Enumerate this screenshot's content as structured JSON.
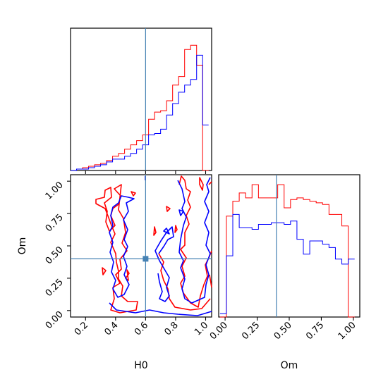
{
  "chart_data": {
    "type": "corner",
    "parameters": [
      "H0",
      "Om"
    ],
    "axis_labels": {
      "x_bottom_left": "H0",
      "y_left": "Om",
      "x_bottom_right": "Om"
    },
    "truth": {
      "H0": 0.6,
      "Om": 0.4
    },
    "truth_color": "#4682b4",
    "series_colors": {
      "red": "#ff0000",
      "blue": "#0000ff"
    },
    "h0_panel": {
      "xlim": [
        0.1,
        1.04
      ],
      "xticks": [
        "0.2",
        "0.4",
        "0.6",
        "0.8",
        "1.0"
      ],
      "xtick_values": [
        0.2,
        0.4,
        0.6,
        0.8,
        1.0
      ]
    },
    "om_panel": {
      "xlim": [
        -0.05,
        1.05
      ],
      "xticks": [
        "0.00",
        "0.25",
        "0.50",
        "0.75",
        "1.00"
      ],
      "xtick_values": [
        0.0,
        0.25,
        0.5,
        0.75,
        1.0
      ]
    },
    "joint_panel": {
      "ylim": [
        -0.05,
        1.05
      ],
      "yticks": [
        "0.00",
        "0.25",
        "0.50",
        "0.75",
        "1.00"
      ],
      "ytick_values": [
        0.0,
        0.25,
        0.5,
        0.75,
        1.0
      ]
    },
    "hist_h0": {
      "bin_edges": [
        0.1,
        0.14,
        0.18,
        0.22,
        0.26,
        0.3,
        0.34,
        0.38,
        0.42,
        0.46,
        0.5,
        0.54,
        0.58,
        0.62,
        0.66,
        0.7,
        0.74,
        0.78,
        0.82,
        0.86,
        0.9,
        0.94,
        0.98,
        1.02
      ],
      "ylim": [
        0,
        1.0
      ],
      "series": [
        {
          "color": "red",
          "values": [
            0.0,
            0.01,
            0.02,
            0.03,
            0.04,
            0.05,
            0.07,
            0.1,
            0.12,
            0.15,
            0.18,
            0.21,
            0.25,
            0.36,
            0.41,
            0.42,
            0.49,
            0.6,
            0.66,
            0.85,
            0.88,
            0.74,
            0.0
          ]
        },
        {
          "color": "blue",
          "values": [
            0.0,
            0.01,
            0.01,
            0.02,
            0.03,
            0.04,
            0.06,
            0.08,
            0.08,
            0.1,
            0.12,
            0.15,
            0.18,
            0.25,
            0.26,
            0.29,
            0.39,
            0.47,
            0.55,
            0.6,
            0.64,
            0.81,
            0.32
          ]
        }
      ]
    },
    "hist_om": {
      "bin_edges": [
        -0.04,
        0.01,
        0.06,
        0.11,
        0.16,
        0.21,
        0.26,
        0.31,
        0.36,
        0.41,
        0.46,
        0.51,
        0.56,
        0.61,
        0.66,
        0.71,
        0.76,
        0.81,
        0.86,
        0.91,
        0.96,
        1.01
      ],
      "ylim": [
        0,
        0.86
      ],
      "series": [
        {
          "color": "red",
          "values": [
            0.0,
            0.61,
            0.7,
            0.75,
            0.72,
            0.8,
            0.72,
            0.72,
            0.72,
            0.8,
            0.66,
            0.71,
            0.72,
            0.71,
            0.7,
            0.69,
            0.68,
            0.62,
            0.62,
            0.55,
            0.0
          ]
        },
        {
          "color": "blue",
          "values": [
            0.02,
            0.37,
            0.62,
            0.54,
            0.54,
            0.53,
            0.56,
            0.56,
            0.57,
            0.57,
            0.56,
            0.58,
            0.47,
            0.38,
            0.46,
            0.46,
            0.44,
            0.42,
            0.35,
            0.32,
            0.35
          ]
        }
      ]
    }
  }
}
